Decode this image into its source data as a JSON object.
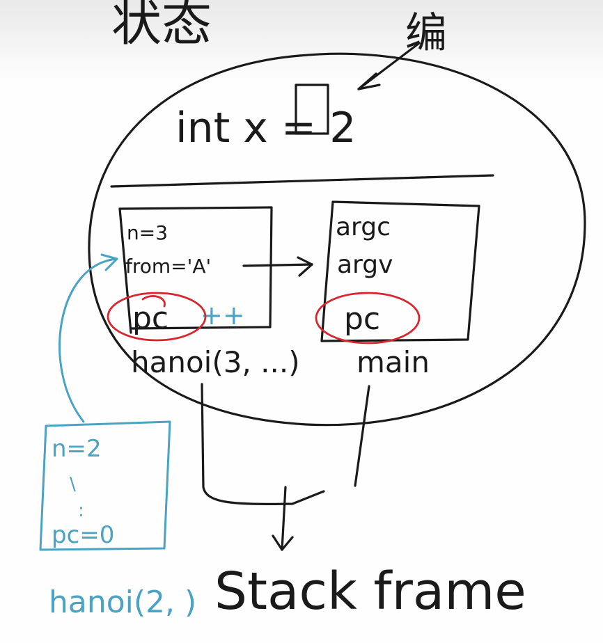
{
  "top": {
    "title_fragment": "状态",
    "note_fragment": "编"
  },
  "process": {
    "global_text": "int x = 2"
  },
  "frames": {
    "hanoi": {
      "lines": [
        "n=3",
        "from='A'"
      ],
      "pc": "pc",
      "pc_suffix": "++",
      "label": "hanoi(3, ...)"
    },
    "main": {
      "lines": [
        "argc",
        "argv"
      ],
      "pc": "pc",
      "label": "main"
    }
  },
  "new_frame": {
    "lines": [
      "n=2",
      "\\",
      ":",
      "pc=0"
    ],
    "label": "hanoi(2, )"
  },
  "caption": "Stack frame",
  "colors": {
    "ink": "#1a1a1a",
    "red": "#d8262f",
    "blue": "#4aa3c2"
  }
}
